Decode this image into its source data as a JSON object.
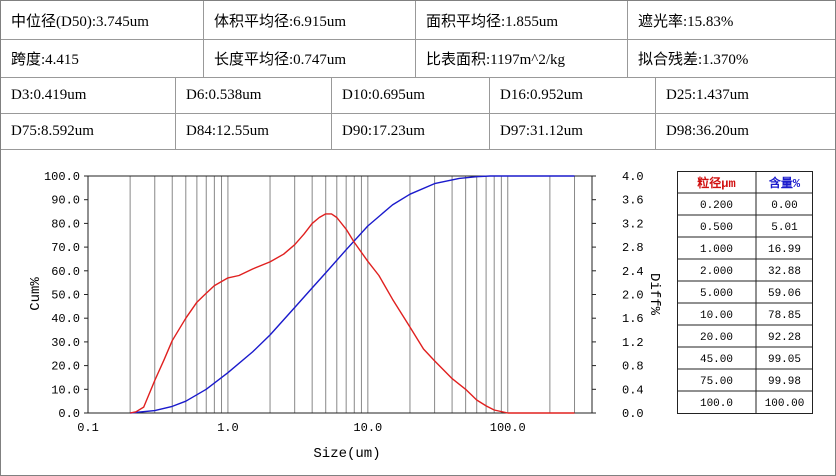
{
  "summary_rows": [
    [
      "中位径(D50):3.745um",
      "体积平均径:6.915um",
      "面积平均径:1.855um",
      "遮光率:15.83%"
    ],
    [
      "跨度:4.415",
      "长度平均径:0.747um",
      "比表面积:1197m^2/kg",
      "拟合残差:1.370%"
    ]
  ],
  "d_rows": [
    [
      "D3:0.419um",
      "D6:0.538um",
      "D10:0.695um",
      "D16:0.952um",
      "D25:1.437um"
    ],
    [
      "D75:8.592um",
      "D84:12.55um",
      "D90:17.23um",
      "D97:31.12um",
      "D98:36.20um"
    ]
  ],
  "size_table": {
    "headers": [
      "粒径μm",
      "含量%"
    ],
    "rows": [
      [
        "0.200",
        "0.00"
      ],
      [
        "0.500",
        "5.01"
      ],
      [
        "1.000",
        "16.99"
      ],
      [
        "2.000",
        "32.88"
      ],
      [
        "5.000",
        "59.06"
      ],
      [
        "10.00",
        "78.85"
      ],
      [
        "20.00",
        "92.28"
      ],
      [
        "45.00",
        "99.05"
      ],
      [
        "75.00",
        "99.98"
      ],
      [
        "100.0",
        "100.00"
      ]
    ]
  },
  "colors": {
    "cumulative": "#1a1acc",
    "differential": "#e0201f",
    "header_text": "#d01010",
    "grid": "#888888"
  },
  "chart_data": {
    "type": "line",
    "xlabel": "Size(um)",
    "ylabel": "Cum%",
    "y2label": "Diff%",
    "x_scale": "log",
    "xlim": [
      0.1,
      400
    ],
    "ylim": [
      0,
      100
    ],
    "y2lim": [
      0,
      4
    ],
    "x_ticks": [
      "0.1",
      "1.0",
      "10.0",
      "100.0"
    ],
    "y_ticks": [
      "0.0",
      "10.0",
      "20.0",
      "30.0",
      "40.0",
      "50.0",
      "60.0",
      "70.0",
      "80.0",
      "90.0",
      "100.0"
    ],
    "y2_ticks": [
      "0.0",
      "0.4",
      "0.8",
      "1.2",
      "1.6",
      "2.0",
      "2.4",
      "2.8",
      "3.2",
      "3.6",
      "4.0"
    ],
    "grid": "vertical",
    "series": [
      {
        "key": "cumulative",
        "axis": "left",
        "x": [
          0.2,
          0.3,
          0.4,
          0.5,
          0.7,
          1.0,
          1.5,
          2.0,
          3.0,
          4.0,
          5.0,
          7.0,
          10.0,
          15.0,
          20.0,
          30.0,
          45.0,
          60.0,
          75.0,
          100.0,
          150.0,
          300.0
        ],
        "y": [
          0.0,
          1.0,
          2.8,
          5.0,
          10.0,
          17.0,
          25.8,
          32.9,
          44.5,
          52.8,
          59.1,
          68.9,
          78.9,
          87.8,
          92.3,
          96.8,
          99.0,
          99.7,
          100.0,
          100.0,
          100.0,
          100.0
        ]
      },
      {
        "key": "differential",
        "axis": "right",
        "x": [
          0.2,
          0.22,
          0.25,
          0.3,
          0.35,
          0.4,
          0.5,
          0.6,
          0.7,
          0.8,
          1.0,
          1.2,
          1.5,
          2.0,
          2.5,
          3.0,
          3.5,
          4.0,
          4.5,
          5.0,
          5.5,
          6.0,
          7.0,
          8.0,
          10.0,
          12.0,
          15.0,
          20.0,
          25.0,
          30.0,
          40.0,
          50.0,
          60.0,
          70.0,
          80.0,
          100.0,
          150.0,
          300.0
        ],
        "y": [
          0.0,
          0.02,
          0.1,
          0.55,
          0.9,
          1.22,
          1.6,
          1.87,
          2.02,
          2.15,
          2.28,
          2.32,
          2.43,
          2.55,
          2.68,
          2.84,
          3.02,
          3.2,
          3.3,
          3.36,
          3.36,
          3.3,
          3.1,
          2.88,
          2.56,
          2.32,
          1.92,
          1.45,
          1.08,
          0.88,
          0.58,
          0.4,
          0.22,
          0.12,
          0.05,
          0.0,
          0.0,
          0.0
        ]
      }
    ]
  }
}
